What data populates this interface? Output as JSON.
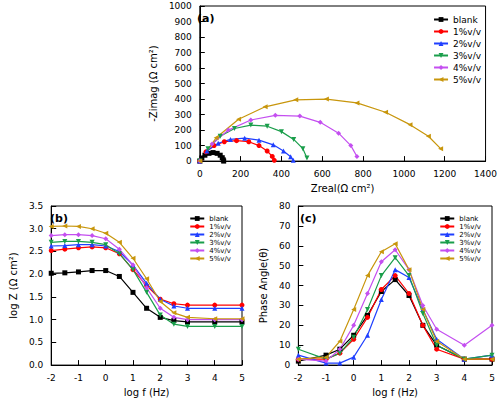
{
  "chart_data": [
    {
      "type": "line",
      "title": "(a)",
      "x_label": "Zreal(Ω cm²)",
      "y_label": "-Zimag (Ω cm²)",
      "xlim": [
        0,
        1400
      ],
      "xticks": [
        0,
        200,
        400,
        600,
        800,
        1000,
        1200,
        1400
      ],
      "ylim": [
        0,
        1000
      ],
      "yticks": [
        0,
        100,
        200,
        300,
        400,
        500,
        600,
        700,
        800,
        900,
        1000
      ],
      "grid": false,
      "legend": "upper right",
      "series": [
        {
          "name": "blank",
          "color": "#000000",
          "marker": "square",
          "line_style": "solid",
          "x": [
            0,
            10,
            25,
            45,
            65,
            85,
            100,
            110,
            115,
            117
          ],
          "values": [
            0,
            20,
            38,
            50,
            55,
            50,
            38,
            22,
            8,
            0
          ]
        },
        {
          "name": "1%v/v",
          "color": "#ff0000",
          "marker": "circle",
          "line_style": "solid",
          "x": [
            0,
            30,
            70,
            120,
            180,
            240,
            290,
            330,
            355,
            365
          ],
          "values": [
            0,
            60,
            100,
            125,
            132,
            125,
            100,
            65,
            30,
            5
          ]
        },
        {
          "name": "2%v/v",
          "color": "#1f3fff",
          "marker": "triangle-up",
          "line_style": "solid",
          "x": [
            0,
            35,
            90,
            150,
            220,
            290,
            360,
            410,
            445,
            458
          ],
          "values": [
            0,
            65,
            115,
            140,
            148,
            135,
            105,
            65,
            28,
            5
          ]
        },
        {
          "name": "3%v/v",
          "color": "#1a9e4b",
          "marker": "triangle-down",
          "line_style": "solid",
          "x": [
            0,
            40,
            100,
            170,
            250,
            330,
            400,
            460,
            505,
            525
          ],
          "values": [
            0,
            80,
            160,
            210,
            232,
            225,
            190,
            140,
            80,
            20
          ]
        },
        {
          "name": "4%v/v",
          "color": "#c44ff0",
          "marker": "diamond",
          "line_style": "solid",
          "x": [
            0,
            60,
            140,
            250,
            370,
            490,
            590,
            680,
            740,
            770
          ],
          "values": [
            0,
            110,
            200,
            265,
            295,
            290,
            250,
            180,
            100,
            30
          ]
        },
        {
          "name": "5%v/v",
          "color": "#c8960c",
          "marker": "triangle-left",
          "line_style": "solid",
          "x": [
            0,
            80,
            190,
            320,
            470,
            620,
            770,
            910,
            1030,
            1120,
            1180
          ],
          "values": [
            0,
            150,
            270,
            350,
            395,
            400,
            375,
            315,
            235,
            160,
            80
          ]
        }
      ]
    },
    {
      "type": "line",
      "title": "(b)",
      "x_label": "log f (Hz)",
      "y_label": "log Z (Ω cm²)",
      "xlim": [
        -2,
        5
      ],
      "xticks": [
        -2,
        -1,
        0,
        1,
        2,
        3,
        4,
        5
      ],
      "ylim": [
        0,
        3.5
      ],
      "yticks": [
        {
          "value": 0,
          "label": "0.0"
        },
        0.5,
        {
          "value": 1,
          "label": "1.0"
        },
        1.5,
        {
          "value": 2,
          "label": "2.0"
        },
        2.5,
        {
          "value": 3,
          "label": "3.0"
        },
        3.5
      ],
      "grid": false,
      "legend": "upper right",
      "series": [
        {
          "name": "blank",
          "color": "#000000",
          "marker": "square",
          "line_style": "solid",
          "x": [
            -2,
            -1.5,
            -1,
            -0.5,
            0,
            0.5,
            1,
            1.5,
            2,
            2.5,
            3,
            4,
            5
          ],
          "values": [
            2.02,
            2.03,
            2.05,
            2.08,
            2.08,
            1.95,
            1.6,
            1.25,
            1.05,
            0.98,
            0.95,
            0.95,
            0.95
          ]
        },
        {
          "name": "1%v/v",
          "color": "#ff0000",
          "marker": "circle",
          "line_style": "solid",
          "x": [
            -2,
            -1.5,
            -1,
            -0.5,
            0,
            0.5,
            1,
            1.5,
            2,
            2.5,
            3,
            4,
            5
          ],
          "values": [
            2.52,
            2.55,
            2.58,
            2.6,
            2.58,
            2.45,
            2.1,
            1.75,
            1.45,
            1.35,
            1.32,
            1.32,
            1.32
          ]
        },
        {
          "name": "2%v/v",
          "color": "#1f3fff",
          "marker": "triangle-up",
          "line_style": "solid",
          "x": [
            -2,
            -1.5,
            -1,
            -0.5,
            0,
            0.5,
            1,
            1.5,
            2,
            2.5,
            3,
            4,
            5
          ],
          "values": [
            2.62,
            2.63,
            2.65,
            2.65,
            2.62,
            2.5,
            2.2,
            1.8,
            1.45,
            1.3,
            1.25,
            1.25,
            1.25
          ]
        },
        {
          "name": "3%v/v",
          "color": "#1a9e4b",
          "marker": "triangle-down",
          "line_style": "solid",
          "x": [
            -2,
            -1.5,
            -1,
            -0.5,
            0,
            0.5,
            1,
            1.5,
            2,
            2.5,
            3,
            4,
            5
          ],
          "values": [
            2.7,
            2.72,
            2.72,
            2.7,
            2.65,
            2.45,
            2.1,
            1.6,
            1.1,
            0.9,
            0.85,
            0.85,
            0.85
          ]
        },
        {
          "name": "4%v/v",
          "color": "#c44ff0",
          "marker": "diamond",
          "line_style": "solid",
          "x": [
            -2,
            -1.5,
            -1,
            -0.5,
            0,
            0.5,
            1,
            1.5,
            2,
            2.5,
            3,
            4,
            5
          ],
          "values": [
            2.85,
            2.87,
            2.87,
            2.85,
            2.78,
            2.55,
            2.2,
            1.7,
            1.25,
            1.05,
            1.0,
            1.0,
            1.0
          ]
        },
        {
          "name": "5%v/v",
          "color": "#c8960c",
          "marker": "triangle-left",
          "line_style": "solid",
          "x": [
            -2,
            -1.5,
            -1,
            -0.5,
            0,
            0.5,
            1,
            1.5,
            2,
            2.5,
            3,
            4,
            5
          ],
          "values": [
            3.05,
            3.06,
            3.05,
            3.0,
            2.9,
            2.7,
            2.35,
            1.9,
            1.4,
            1.15,
            1.05,
            1.02,
            1.02
          ]
        }
      ]
    },
    {
      "type": "line",
      "title": "(c)",
      "x_label": "log f (Hz)",
      "y_label": "Phase Angle(θ)",
      "xlim": [
        -2,
        5
      ],
      "xticks": [
        -2,
        -1,
        0,
        1,
        2,
        3,
        4,
        5
      ],
      "ylim": [
        0,
        80
      ],
      "yticks": [
        0,
        10,
        20,
        30,
        40,
        50,
        60,
        70,
        80
      ],
      "grid": false,
      "legend": "upper right",
      "series": [
        {
          "name": "blank",
          "color": "#000000",
          "marker": "square",
          "line_style": "solid",
          "x": [
            -2,
            -1,
            -0.5,
            0,
            0.5,
            1,
            1.5,
            2,
            2.5,
            3,
            4,
            5
          ],
          "values": [
            2,
            5,
            8,
            15,
            25,
            37,
            43,
            35,
            20,
            10,
            3,
            3
          ]
        },
        {
          "name": "1%v/v",
          "color": "#ff0000",
          "marker": "circle",
          "line_style": "solid",
          "x": [
            -2,
            -1,
            -0.5,
            0,
            0.5,
            1,
            1.5,
            2,
            2.5,
            3,
            4,
            5
          ],
          "values": [
            3,
            3,
            6,
            13,
            24,
            38,
            45,
            36,
            20,
            8,
            3,
            3
          ]
        },
        {
          "name": "2%v/v",
          "color": "#1f3fff",
          "marker": "triangle-up",
          "line_style": "solid",
          "x": [
            -2,
            -1,
            -0.5,
            0,
            0.5,
            1,
            1.5,
            2,
            2.5,
            3,
            4,
            5
          ],
          "values": [
            5,
            1,
            1,
            4,
            15,
            33,
            48,
            44,
            28,
            13,
            3,
            5
          ]
        },
        {
          "name": "3%v/v",
          "color": "#1a9e4b",
          "marker": "triangle-down",
          "line_style": "solid",
          "x": [
            -2,
            -1,
            -0.5,
            0,
            0.5,
            1,
            1.5,
            2,
            2.5,
            3,
            4,
            5
          ],
          "values": [
            8,
            3,
            6,
            14,
            28,
            45,
            54,
            45,
            26,
            10,
            3,
            5
          ]
        },
        {
          "name": "4%v/v",
          "color": "#c44ff0",
          "marker": "diamond",
          "line_style": "solid",
          "x": [
            -2,
            -1,
            -0.5,
            0,
            0.5,
            1,
            1.5,
            2,
            2.5,
            3,
            4,
            5
          ],
          "values": [
            3,
            2,
            8,
            20,
            36,
            52,
            58,
            48,
            30,
            18,
            10,
            20
          ]
        },
        {
          "name": "5%v/v",
          "color": "#c8960c",
          "marker": "triangle-left",
          "line_style": "solid",
          "x": [
            -2,
            -1,
            -0.5,
            0,
            0.5,
            1,
            1.5,
            2,
            2.5,
            3,
            4,
            5
          ],
          "values": [
            3,
            4,
            12,
            28,
            45,
            57,
            61,
            48,
            28,
            12,
            3,
            3
          ]
        }
      ]
    }
  ]
}
